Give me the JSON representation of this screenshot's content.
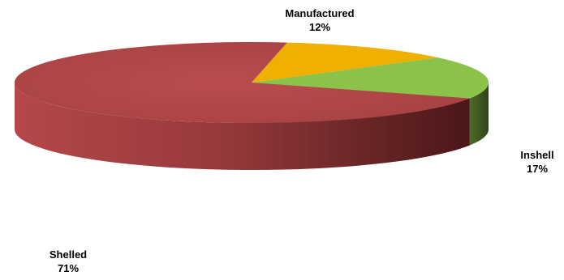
{
  "chart_data": {
    "type": "pie",
    "style": "3d",
    "title": "",
    "slices": [
      {
        "name": "Manufactured",
        "value": 12,
        "label": "12%",
        "color": "#F0B000"
      },
      {
        "name": "Inshell",
        "value": 17,
        "label": "17%",
        "color": "#8BC34A"
      },
      {
        "name": "Shelled",
        "value": 71,
        "label": "71%",
        "color": "#B5474A"
      }
    ],
    "side_colors": {
      "Manufactured": "#9A7200",
      "Inshell": "#3F5A20",
      "Shelled": "#5A1E1F"
    },
    "legend": "none"
  }
}
